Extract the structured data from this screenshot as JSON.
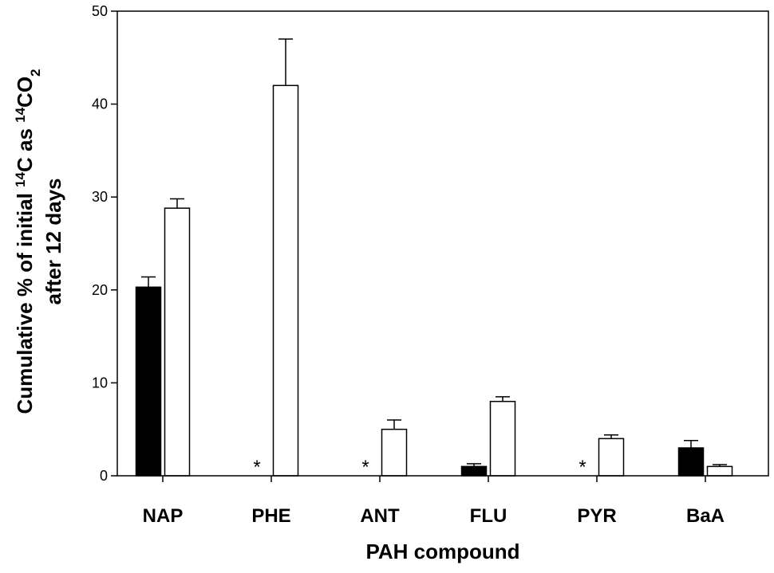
{
  "chart_data": {
    "type": "bar",
    "categories": [
      "NAP",
      "PHE",
      "ANT",
      "FLU",
      "PYR",
      "BaA"
    ],
    "series": [
      {
        "fill": "#000000",
        "values": [
          20.3,
          null,
          null,
          1.0,
          null,
          3.0
        ],
        "errors": [
          1.1,
          null,
          null,
          0.3,
          null,
          0.8
        ],
        "markers": [
          "",
          "*",
          "*",
          "",
          "*",
          ""
        ]
      },
      {
        "fill": "#ffffff",
        "values": [
          28.8,
          42.0,
          5.0,
          8.0,
          4.0,
          1.0
        ],
        "errors": [
          1.0,
          5.0,
          1.0,
          0.5,
          0.4,
          0.2
        ]
      }
    ],
    "xlabel": "PAH compound",
    "ylabel_line1": {
      "prefix": "Cumulative % of initial ",
      "sup1": "14",
      "mid": "C as ",
      "sup2": "14",
      "mid2": "CO",
      "sub": "2"
    },
    "ylabel_line2": "after 12 days",
    "ylim": [
      0,
      50
    ],
    "yticks": [
      0,
      10,
      20,
      30,
      40,
      50
    ],
    "grid": false,
    "legend": "none"
  }
}
